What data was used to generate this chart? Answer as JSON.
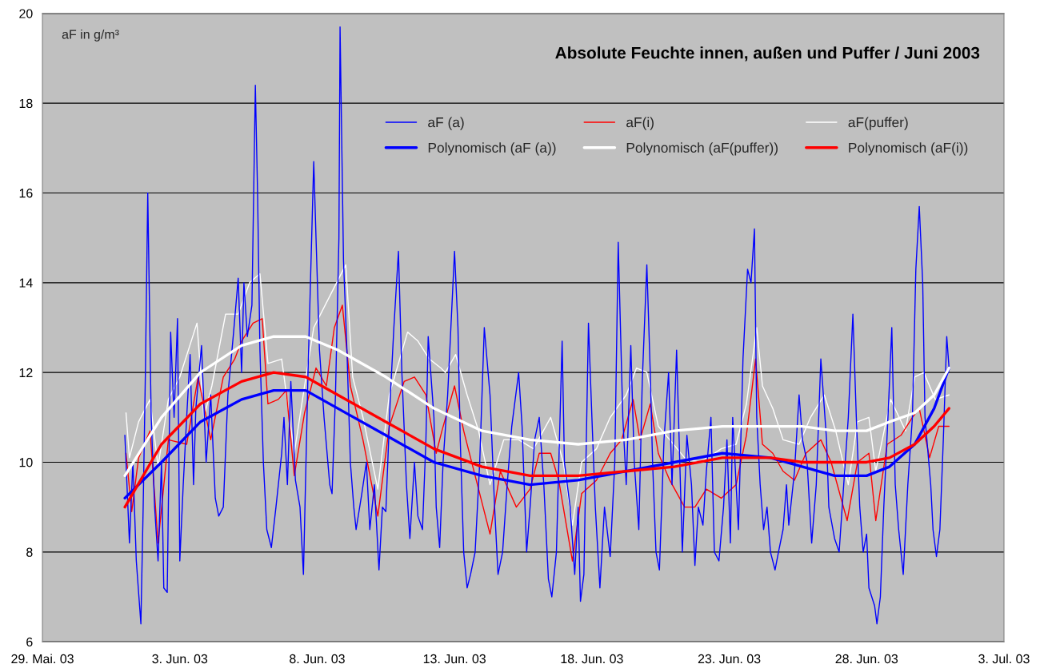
{
  "chart_data": {
    "type": "line",
    "title": "Absolute Feuchte innen, außen und Puffer / Juni 2003",
    "ylabel": "aF in g/m³",
    "xlim": [
      "2003-05-29",
      "2003-07-03"
    ],
    "xticks": [
      {
        "value": "2003-05-29",
        "label": "29. Mai. 03"
      },
      {
        "value": "2003-06-03",
        "label": "3. Jun. 03"
      },
      {
        "value": "2003-06-08",
        "label": "8. Jun. 03"
      },
      {
        "value": "2003-06-13",
        "label": "13. Jun. 03"
      },
      {
        "value": "2003-06-18",
        "label": "18. Jun. 03"
      },
      {
        "value": "2003-06-23",
        "label": "23. Jun. 03"
      },
      {
        "value": "2003-06-28",
        "label": "28. Jun. 03"
      },
      {
        "value": "2003-07-03",
        "label": "3. Jul. 03"
      }
    ],
    "ylim": [
      6,
      20
    ],
    "yticks": [
      6,
      8,
      10,
      12,
      14,
      16,
      18,
      20
    ],
    "grid": "y",
    "legend": "top",
    "marker": "none",
    "line_style": "solid",
    "series": [
      {
        "name": "aF (a)",
        "color": "#0000ff",
        "x": [
          "2003-06-01T00:00",
          "2003-06-01T04:00",
          "2003-06-01T07:00",
          "2003-06-01T10:00",
          "2003-06-01T14:00",
          "2003-06-01T16:00",
          "2003-06-01T18:00",
          "2003-06-01T20:00",
          "2003-06-01T23:00",
          "2003-06-02T02:00",
          "2003-06-02T05:00",
          "2003-06-02T08:00",
          "2003-06-02T10:00",
          "2003-06-02T13:00",
          "2003-06-02T16:00",
          "2003-06-02T19:00",
          "2003-06-02T22:00",
          "2003-06-03T00:00",
          "2003-06-03T03:00",
          "2003-06-03T06:00",
          "2003-06-03T09:00",
          "2003-06-03T12:00",
          "2003-06-03T14:00",
          "2003-06-03T19:00",
          "2003-06-03T23:00",
          "2003-06-04T03:00",
          "2003-06-04T07:00",
          "2003-06-04T10:00",
          "2003-06-04T14:00",
          "2003-06-04T18:00",
          "2003-06-04T23:00",
          "2003-06-05T03:00",
          "2003-06-05T06:00",
          "2003-06-05T08:00",
          "2003-06-05T11:00",
          "2003-06-05T15:00",
          "2003-06-05T18:00",
          "2003-06-05T20:00",
          "2003-06-05T22:00",
          "2003-06-06T01:00",
          "2003-06-06T04:00",
          "2003-06-06T08:00",
          "2003-06-06T12:00",
          "2003-06-06T17:00",
          "2003-06-06T19:00",
          "2003-06-06T22:00",
          "2003-06-07T01:00",
          "2003-06-07T05:00",
          "2003-06-07T09:00",
          "2003-06-07T12:00",
          "2003-06-07T16:00",
          "2003-06-07T21:00",
          "2003-06-07T23:00",
          "2003-06-08T02:00",
          "2003-06-08T06:00",
          "2003-06-08T11:00",
          "2003-06-08T13:00",
          "2003-06-08T16:00",
          "2003-06-08T19:00",
          "2003-06-08T20:00",
          "2003-06-08T23:00",
          "2003-06-09T02:00",
          "2003-06-09T05:00",
          "2003-06-09T08:00",
          "2003-06-09T10:00",
          "2003-06-09T15:00",
          "2003-06-09T19:00",
          "2003-06-09T22:00",
          "2003-06-10T02:00",
          "2003-06-10T06:00",
          "2003-06-10T09:00",
          "2003-06-10T12:00",
          "2003-06-10T16:00",
          "2003-06-10T19:00",
          "2003-06-10T23:00",
          "2003-06-11T02:00",
          "2003-06-11T06:00",
          "2003-06-11T09:00",
          "2003-06-11T13:00",
          "2003-06-11T16:00",
          "2003-06-11T20:00",
          "2003-06-11T23:00",
          "2003-06-12T01:00",
          "2003-06-12T06:00",
          "2003-06-12T08:00",
          "2003-06-12T11:00",
          "2003-06-12T14:00",
          "2003-06-12T18:00",
          "2003-06-13T00:00",
          "2003-06-13T03:00",
          "2003-06-13T05:00",
          "2003-06-13T08:00",
          "2003-06-13T11:00",
          "2003-06-13T14:00",
          "2003-06-13T18:00",
          "2003-06-13T22:00",
          "2003-06-14T02:00",
          "2003-06-14T07:00",
          "2003-06-14T11:00",
          "2003-06-14T14:00",
          "2003-06-14T18:00",
          "2003-06-14T22:00",
          "2003-06-15T02:00",
          "2003-06-15T08:00",
          "2003-06-15T11:00",
          "2003-06-15T15:00",
          "2003-06-15T18:00",
          "2003-06-15T22:00",
          "2003-06-16T02:00",
          "2003-06-16T06:00",
          "2003-06-16T10:00",
          "2003-06-16T13:00",
          "2003-06-16T17:00",
          "2003-06-16T22:00",
          "2003-06-17T00:00",
          "2003-06-17T05:00",
          "2003-06-17T09:00",
          "2003-06-17T12:00",
          "2003-06-17T14:00",
          "2003-06-17T17:00",
          "2003-06-17T21:00",
          "2003-06-18T00:00",
          "2003-06-18T03:00",
          "2003-06-18T07:00",
          "2003-06-18T11:00",
          "2003-06-18T16:00",
          "2003-06-18T20:00",
          "2003-06-18T23:00",
          "2003-06-19T03:00",
          "2003-06-19T06:00",
          "2003-06-19T10:00",
          "2003-06-19T13:00",
          "2003-06-19T17:00",
          "2003-06-19T20:00",
          "2003-06-20T00:00",
          "2003-06-20T03:00",
          "2003-06-20T05:00",
          "2003-06-20T08:00",
          "2003-06-20T11:00",
          "2003-06-20T15:00",
          "2003-06-20T19:00",
          "2003-06-20T22:00",
          "2003-06-21T02:00",
          "2003-06-21T07:00",
          "2003-06-21T11:00",
          "2003-06-21T15:00",
          "2003-06-21T18:00",
          "2003-06-21T21:00",
          "2003-06-22T01:00",
          "2003-06-22T04:00",
          "2003-06-22T08:00",
          "2003-06-22T11:00",
          "2003-06-22T15:00",
          "2003-06-22T19:00",
          "2003-06-22T22:00",
          "2003-06-23T01:00",
          "2003-06-23T03:00",
          "2003-06-23T08:00",
          "2003-06-23T12:00",
          "2003-06-23T16:00",
          "2003-06-23T19:00",
          "2003-06-23T22:00",
          "2003-06-24T00:00",
          "2003-06-24T03:00",
          "2003-06-24T06:00",
          "2003-06-24T09:00",
          "2003-06-24T12:00",
          "2003-06-24T16:00",
          "2003-06-24T19:00",
          "2003-06-24T23:00",
          "2003-06-25T02:00",
          "2003-06-25T04:00",
          "2003-06-25T09:00",
          "2003-06-25T13:00",
          "2003-06-25T16:00",
          "2003-06-25T20:00",
          "2003-06-26T00:00",
          "2003-06-26T04:00",
          "2003-06-26T08:00",
          "2003-06-26T13:00",
          "2003-06-26T15:00",
          "2003-06-26T20:00",
          "2003-06-27T00:00",
          "2003-06-27T04:00",
          "2003-06-27T08:00",
          "2003-06-27T12:00",
          "2003-06-27T15:00",
          "2003-06-27T18:00",
          "2003-06-27T21:00",
          "2003-06-28T00:00",
          "2003-06-28T02:00",
          "2003-06-28T07:00",
          "2003-06-28T09:00",
          "2003-06-28T12:00",
          "2003-06-28T15:00",
          "2003-06-28T19:00",
          "2003-06-28T22:00",
          "2003-06-29T01:00",
          "2003-06-29T04:00",
          "2003-06-29T08:00",
          "2003-06-29T12:00",
          "2003-06-29T16:00",
          "2003-06-29T19:00",
          "2003-06-29T22:00",
          "2003-06-30T01:00",
          "2003-06-30T03:00",
          "2003-06-30T08:00",
          "2003-06-30T10:00",
          "2003-06-30T13:00",
          "2003-06-30T16:00",
          "2003-06-30T19:00",
          "2003-06-30T22:00",
          "2003-07-01T00:00"
        ],
        "values": [
          10.6,
          8.2,
          10.0,
          7.8,
          6.4,
          9.0,
          12.1,
          16.0,
          11.0,
          9.0,
          7.8,
          10.0,
          7.2,
          7.1,
          12.9,
          11.0,
          13.2,
          7.8,
          9.5,
          11.0,
          12.4,
          9.5,
          11.2,
          12.6,
          10.0,
          11.5,
          9.2,
          8.8,
          9.0,
          11.5,
          12.9,
          14.1,
          12.0,
          14.0,
          12.8,
          13.5,
          18.4,
          15.9,
          12.5,
          10.0,
          8.5,
          8.1,
          9.0,
          10.2,
          11.0,
          9.5,
          11.8,
          9.6,
          9.0,
          7.5,
          12.0,
          16.7,
          15.0,
          12.5,
          11.0,
          9.5,
          9.3,
          11.5,
          15.0,
          19.7,
          14.5,
          12.5,
          10.0,
          9.0,
          8.5,
          9.3,
          10.0,
          8.5,
          9.5,
          7.6,
          9.0,
          8.9,
          11.5,
          13.0,
          14.7,
          12.0,
          9.5,
          8.3,
          10.0,
          8.8,
          8.5,
          10.5,
          12.8,
          11.0,
          9.0,
          8.1,
          10.0,
          11.5,
          14.7,
          13.0,
          10.5,
          8.0,
          7.2,
          7.5,
          8.0,
          10.0,
          13.0,
          11.5,
          9.0,
          7.5,
          8.0,
          9.5,
          10.8,
          12.0,
          10.8,
          8.0,
          9.0,
          10.5,
          11.0,
          9.5,
          7.4,
          7.0,
          8.0,
          12.7,
          10.0,
          9.0,
          7.5,
          9.0,
          6.9,
          7.5,
          13.1,
          11.0,
          9.0,
          7.2,
          9.0,
          7.9,
          10.0,
          14.9,
          11.0,
          9.5,
          12.6,
          10.0,
          8.5,
          11.8,
          14.4,
          12.0,
          10.0,
          8.0,
          7.6,
          10.5,
          12.0,
          9.5,
          12.5,
          8.0,
          10.6,
          9.5,
          7.7,
          9.0,
          8.6,
          9.8,
          11.0,
          8.0,
          7.8,
          9.0,
          10.5,
          8.2,
          11.0,
          8.5,
          12.3,
          14.3,
          14.0,
          15.2,
          11.0,
          9.5,
          8.5,
          9.0,
          8.0,
          7.6,
          8.0,
          8.5,
          9.5,
          8.6,
          9.8,
          11.5,
          10.5,
          10.0,
          8.2,
          9.5,
          12.3,
          10.5,
          9.0,
          8.3,
          8.0,
          9.5,
          11.0,
          13.3,
          11.0,
          9.0,
          8.0,
          8.4,
          7.2,
          6.8,
          6.4,
          7.0,
          9.0,
          11.2,
          13.0,
          9.5,
          8.5,
          7.5,
          9.5,
          11.0,
          14.3,
          15.7,
          14.0,
          11.0,
          9.5,
          8.5,
          7.9,
          8.5,
          10.5,
          12.8,
          12.1
        ]
      },
      {
        "name": "aF(i)",
        "color": "#ff0000",
        "x": [
          "2003-06-01T01:00",
          "2003-06-01T06:00",
          "2003-06-01T12:00",
          "2003-06-01T22:00",
          "2003-06-02T05:00",
          "2003-06-02T14:00",
          "2003-06-03T06:00",
          "2003-06-03T16:00",
          "2003-06-04T03:00",
          "2003-06-04T14:00",
          "2003-06-05T00:00",
          "2003-06-05T06:00",
          "2003-06-05T16:00",
          "2003-06-06T00:00",
          "2003-06-06T05:00",
          "2003-06-06T14:00",
          "2003-06-06T21:00",
          "2003-06-07T04:00",
          "2003-06-07T13:00",
          "2003-06-07T23:00",
          "2003-06-08T08:00",
          "2003-06-08T15:00",
          "2003-06-08T22:00",
          "2003-06-09T05:00",
          "2003-06-09T16:00",
          "2003-06-10T05:00",
          "2003-06-10T15:00",
          "2003-06-11T04:00",
          "2003-06-11T13:00",
          "2003-06-11T23:00",
          "2003-06-12T08:00",
          "2003-06-12T13:00",
          "2003-06-13T00:00",
          "2003-06-13T08:00",
          "2003-06-13T16:00",
          "2003-06-14T07:00",
          "2003-06-14T16:00",
          "2003-06-15T06:00",
          "2003-06-15T18:00",
          "2003-06-16T02:00",
          "2003-06-16T12:00",
          "2003-06-16T19:00",
          "2003-06-17T07:00",
          "2003-06-17T15:00",
          "2003-06-18T04:00",
          "2003-06-18T16:00",
          "2003-06-19T02:00",
          "2003-06-19T12:00",
          "2003-06-19T18:00",
          "2003-06-20T03:00",
          "2003-06-20T10:00",
          "2003-06-20T20:00",
          "2003-06-21T09:00",
          "2003-06-21T18:00",
          "2003-06-22T04:00",
          "2003-06-22T17:00",
          "2003-06-23T06:00",
          "2003-06-23T15:00",
          "2003-06-23T23:00",
          "2003-06-24T05:00",
          "2003-06-24T14:00",
          "2003-06-24T23:00",
          "2003-06-25T09:00",
          "2003-06-25T19:00",
          "2003-06-26T08:00",
          "2003-06-26T17:00",
          "2003-06-27T07:00",
          "2003-06-27T16:00",
          "2003-06-28T02:00",
          "2003-06-28T08:00",
          "2003-06-28T18:00",
          "2003-06-29T06:00",
          "2003-06-29T16:00",
          "2003-06-29T22:00",
          "2003-06-30T07:00",
          "2003-06-30T15:00",
          "2003-07-01T00:00"
        ],
        "values": [
          10.2,
          8.9,
          10.1,
          10.7,
          8.2,
          10.5,
          10.4,
          11.9,
          10.5,
          11.9,
          12.3,
          12.7,
          13.1,
          13.2,
          11.3,
          11.4,
          11.6,
          9.7,
          11.1,
          12.1,
          11.7,
          13.0,
          13.5,
          11.7,
          10.5,
          8.8,
          10.8,
          11.8,
          11.9,
          11.5,
          10.2,
          10.7,
          11.7,
          10.7,
          9.9,
          8.4,
          9.8,
          9.0,
          9.4,
          10.2,
          10.2,
          9.6,
          7.8,
          9.3,
          9.6,
          10.2,
          10.5,
          11.4,
          10.5,
          11.3,
          10.2,
          9.6,
          9.0,
          9.0,
          9.4,
          9.2,
          9.5,
          10.6,
          12.3,
          10.4,
          10.2,
          9.8,
          9.6,
          10.2,
          10.5,
          10.0,
          8.7,
          10.0,
          10.2,
          8.7,
          10.4,
          10.6,
          11.0,
          11.2,
          10.1,
          10.8,
          10.8
        ]
      },
      {
        "name": "aF(puffer)",
        "color": "#ffffff",
        "x": [
          "2003-06-01T01:00",
          "2003-06-01T04:00",
          "2003-06-01T12:00",
          "2003-06-01T22:00",
          "2003-06-02T05:00",
          "2003-06-02T14:00",
          "2003-06-03T00:00",
          "2003-06-03T15:00",
          "2003-06-03T21:00",
          "2003-06-04T04:00",
          "2003-06-04T16:00",
          "2003-06-05T03:00",
          "2003-06-05T13:00",
          "2003-06-05T22:00",
          "2003-06-06T05:00",
          "2003-06-06T17:00",
          "2003-06-07T04:00",
          "2003-06-07T13:00",
          "2003-06-07T21:00",
          "2003-06-08T11:00",
          "2003-06-09T01:00",
          "2003-06-09T07:00",
          "2003-06-09T16:00",
          "2003-06-10T05:00",
          "2003-06-10T15:00",
          "2003-06-11T07:00",
          "2003-06-11T16:00",
          "2003-06-12T02:00",
          "2003-06-12T12:00",
          "2003-06-12T16:00",
          "2003-06-13T01:00",
          "2003-06-13T11:00",
          "2003-06-13T21:00",
          "2003-06-14T07:00",
          "2003-06-14T19:00",
          "2003-06-15T08:00",
          "2003-06-15T21:00",
          "2003-06-16T12:00",
          "2003-06-16T23:00",
          "2003-06-17T07:00",
          "2003-06-17T15:00",
          "2003-06-18T04:00",
          "2003-06-18T16:00",
          "2003-06-19T06:00",
          "2003-06-19T15:00",
          "2003-06-20T00:00",
          "2003-06-20T10:00",
          "2003-06-20T20:00",
          "2003-06-21T09:00",
          "2003-06-21T22:00",
          "2003-06-22T11:00",
          "2003-06-22T17:00",
          "2003-06-23T06:00",
          "2003-06-23T15:00",
          "2003-06-24T00:00",
          "2003-06-24T05:00",
          "2003-06-24T14:00",
          "2003-06-24T23:00",
          "2003-06-25T13:00",
          "2003-06-25T23:00",
          "2003-06-26T11:00",
          "2003-06-26T21:00",
          "2003-06-27T08:00",
          "2003-06-27T16:00",
          "2003-06-28T02:00",
          "2003-06-28T08:00",
          "2003-06-28T21:00",
          "2003-06-29T10:00",
          "2003-06-29T18:00",
          "2003-06-30T02:00",
          "2003-06-30T12:00",
          "2003-07-01T00:00"
        ],
        "values": [
          11.1,
          10.1,
          10.9,
          11.4,
          9.9,
          11.4,
          11.9,
          13.1,
          11.0,
          11.7,
          13.3,
          13.3,
          14.0,
          14.2,
          12.2,
          12.3,
          10.2,
          11.7,
          13.0,
          13.7,
          14.4,
          11.9,
          11.0,
          9.4,
          11.5,
          12.9,
          12.7,
          12.3,
          12.1,
          12.0,
          12.4,
          11.5,
          10.7,
          9.5,
          10.5,
          10.5,
          10.3,
          11.0,
          10.0,
          8.6,
          10.0,
          10.3,
          11.0,
          11.5,
          12.1,
          12.0,
          10.8,
          10.5,
          10.1,
          10.0,
          10.2,
          10.3,
          10.4,
          11.3,
          13.0,
          11.7,
          11.2,
          10.5,
          10.4,
          11.0,
          11.5,
          10.7,
          9.5,
          10.9,
          11.0,
          9.8,
          11.4,
          10.7,
          11.9,
          12.0,
          11.4,
          11.5
        ]
      },
      {
        "name": "Polynomisch (aF (a))",
        "color": "#0000ff",
        "x": [
          "2003-06-01T00:00",
          "2003-06-02T08:00",
          "2003-06-03T18:00",
          "2003-06-05T06:00",
          "2003-06-06T10:00",
          "2003-06-07T14:00",
          "2003-06-08T18:00",
          "2003-06-10T12:00",
          "2003-06-12T06:00",
          "2003-06-14T00:00",
          "2003-06-15T18:00",
          "2003-06-17T12:00",
          "2003-06-19T06:00",
          "2003-06-21T00:00",
          "2003-06-22T18:00",
          "2003-06-24T12:00",
          "2003-06-25T16:00",
          "2003-06-26T20:00",
          "2003-06-28T00:00",
          "2003-06-28T20:00",
          "2003-06-29T18:00",
          "2003-06-30T11:00",
          "2003-07-01T00:00"
        ],
        "values": [
          9.2,
          10.0,
          10.9,
          11.4,
          11.6,
          11.6,
          11.2,
          10.6,
          10.0,
          9.7,
          9.5,
          9.6,
          9.8,
          10.0,
          10.2,
          10.1,
          9.9,
          9.7,
          9.7,
          9.9,
          10.4,
          11.2,
          12.1
        ]
      },
      {
        "name": "Polynomisch (aF(puffer))",
        "color": "#ffffff",
        "x": [
          "2003-06-01T00:00",
          "2003-06-02T08:00",
          "2003-06-03T18:00",
          "2003-06-05T06:00",
          "2003-06-06T10:00",
          "2003-06-07T14:00",
          "2003-06-08T18:00",
          "2003-06-10T12:00",
          "2003-06-12T06:00",
          "2003-06-14T00:00",
          "2003-06-15T18:00",
          "2003-06-17T12:00",
          "2003-06-19T06:00",
          "2003-06-21T00:00",
          "2003-06-22T18:00",
          "2003-06-24T12:00",
          "2003-06-25T16:00",
          "2003-06-26T20:00",
          "2003-06-28T00:00",
          "2003-06-28T20:00",
          "2003-06-29T18:00",
          "2003-06-30T11:00",
          "2003-07-01T00:00"
        ],
        "values": [
          9.7,
          11.0,
          12.0,
          12.6,
          12.8,
          12.8,
          12.5,
          11.9,
          11.2,
          10.7,
          10.5,
          10.4,
          10.5,
          10.7,
          10.8,
          10.8,
          10.8,
          10.7,
          10.7,
          10.9,
          11.1,
          11.5,
          12.1
        ]
      },
      {
        "name": "Polynomisch (aF(i))",
        "color": "#ff0000",
        "x": [
          "2003-06-01T00:00",
          "2003-06-02T08:00",
          "2003-06-03T18:00",
          "2003-06-05T06:00",
          "2003-06-06T10:00",
          "2003-06-07T14:00",
          "2003-06-08T18:00",
          "2003-06-10T12:00",
          "2003-06-12T06:00",
          "2003-06-14T00:00",
          "2003-06-15T18:00",
          "2003-06-17T12:00",
          "2003-06-19T06:00",
          "2003-06-21T00:00",
          "2003-06-22T18:00",
          "2003-06-24T12:00",
          "2003-06-25T16:00",
          "2003-06-26T20:00",
          "2003-06-28T00:00",
          "2003-06-28T20:00",
          "2003-06-29T18:00",
          "2003-06-30T11:00",
          "2003-07-01T00:00"
        ],
        "values": [
          9.0,
          10.4,
          11.3,
          11.8,
          12.0,
          11.9,
          11.5,
          10.9,
          10.3,
          9.9,
          9.7,
          9.7,
          9.8,
          9.9,
          10.1,
          10.1,
          10.0,
          10.0,
          10.0,
          10.1,
          10.4,
          10.8,
          11.2
        ]
      }
    ]
  }
}
